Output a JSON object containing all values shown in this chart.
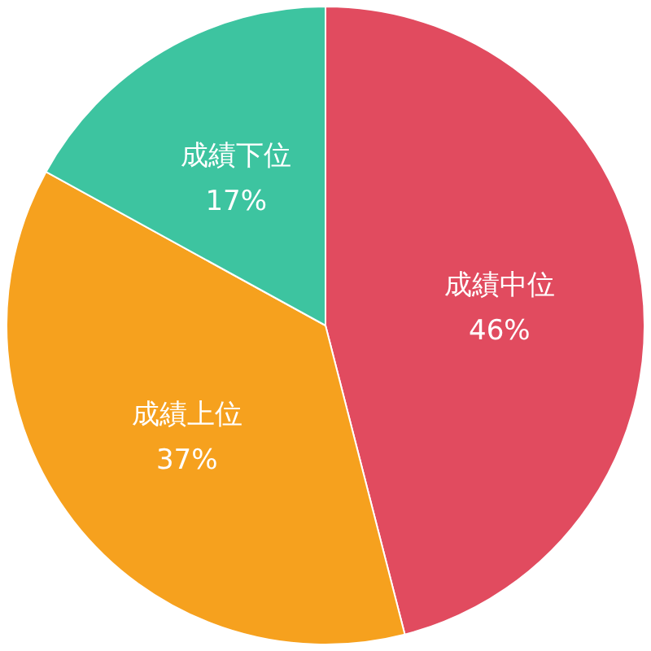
{
  "chart_data": {
    "type": "pie",
    "categories": [
      "成績中位",
      "成績上位",
      "成績下位"
    ],
    "values": [
      46,
      37,
      17
    ],
    "colors": [
      "#e14b5f",
      "#f6a11e",
      "#3dc4a0"
    ],
    "value_labels": [
      "46%",
      "37%",
      "17%"
    ]
  }
}
